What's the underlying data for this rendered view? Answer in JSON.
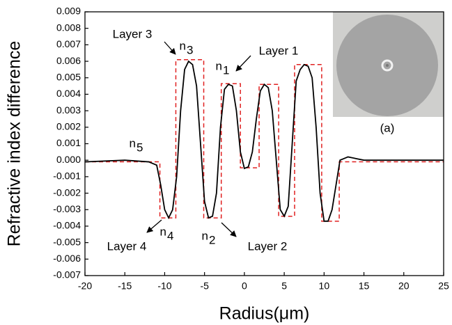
{
  "chart_data": {
    "type": "line",
    "xlabel": "Radius(μm)",
    "ylabel": "Refractive index difference",
    "xlim": [
      -20,
      25
    ],
    "ylim": [
      -0.007,
      0.009
    ],
    "xticks": [
      -20,
      -15,
      -10,
      -5,
      0,
      5,
      10,
      15,
      20,
      25
    ],
    "yticks": [
      -0.007,
      -0.006,
      -0.005,
      -0.004,
      -0.003,
      -0.002,
      -0.001,
      {
        "value": 0,
        "label": "0.000"
      },
      0.001,
      0.002,
      0.003,
      0.004,
      0.005,
      0.006,
      0.007,
      0.008,
      0.009
    ],
    "series": [
      {
        "color": "#e02020",
        "dashed": true,
        "x": [
          -20,
          -10.6,
          -10.6,
          -8.6,
          -8.6,
          -5.1,
          -5.1,
          -2.9,
          -2.9,
          -0.5,
          -0.5,
          1.85,
          1.85,
          4.3,
          4.3,
          6.3,
          6.3,
          9.7,
          9.7,
          11.9,
          11.9,
          25
        ],
        "values": [
          -0.0001,
          -0.0001,
          -0.0035,
          -0.0035,
          0.0061,
          0.0061,
          -0.0035,
          -0.0035,
          0.00464,
          0.00464,
          -0.00046,
          -0.00046,
          0.0046,
          0.0046,
          -0.0034,
          -0.0034,
          0.0058,
          0.0058,
          -0.0037,
          -0.0037,
          -0.0001,
          -0.0001
        ]
      },
      {
        "color": "#000000",
        "dashed": false,
        "x": [
          -20,
          -15,
          -12,
          -11,
          -10.5,
          -10,
          -9.5,
          -9,
          -8.5,
          -8,
          -7.5,
          -7,
          -6.5,
          -6,
          -5.5,
          -5,
          -4.5,
          -4,
          -3.5,
          -3,
          -2.5,
          -2,
          -1.5,
          -1,
          -0.5,
          0,
          0.5,
          1,
          1.5,
          2,
          2.5,
          3,
          3.5,
          4,
          4.5,
          5,
          5.5,
          6,
          6.5,
          7,
          7.5,
          8,
          8.5,
          9,
          9.5,
          10,
          10.5,
          11,
          11.5,
          12,
          12.5,
          13,
          14,
          15,
          25
        ],
        "values": [
          -0.0001,
          0,
          -0.0001,
          -0.0003,
          -0.0015,
          -0.003,
          -0.0035,
          -0.003,
          -0.001,
          0.003,
          0.0055,
          0.006,
          0.0058,
          0.0045,
          0.001,
          -0.0025,
          -0.0035,
          -0.0034,
          -0.002,
          0.002,
          0.0043,
          0.0046,
          0.0045,
          0.003,
          0.0005,
          -0.0005,
          -0.0004,
          0.0005,
          0.0025,
          0.0042,
          0.0046,
          0.0044,
          0.003,
          0,
          -0.003,
          -0.0034,
          -0.0028,
          0.001,
          0.0048,
          0.0055,
          0.0058,
          0.0057,
          0.005,
          0.002,
          -0.002,
          -0.0037,
          -0.0037,
          -0.003,
          -0.0015,
          0,
          0.0001,
          0.0002,
          0.0001,
          0,
          0
        ]
      }
    ],
    "annotations": [
      {
        "text": "Layer 3"
      },
      {
        "text": "n",
        "sub": "3"
      },
      {
        "text": "n",
        "sub": "1"
      },
      {
        "text": "Layer 1"
      },
      {
        "text": "n",
        "sub": "5"
      },
      {
        "text": "Layer 4"
      },
      {
        "text": "n",
        "sub": "4"
      },
      {
        "text": "n",
        "sub": "2"
      },
      {
        "text": "Layer 2"
      },
      {
        "text": "(a)"
      }
    ]
  }
}
